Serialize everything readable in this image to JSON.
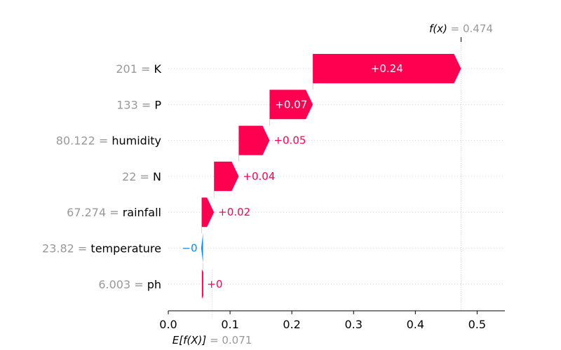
{
  "chart_data": {
    "type": "waterfall",
    "base_value": 0.071,
    "output_value": 0.474,
    "base_label": "E[f(X)]",
    "output_label": "f(x)",
    "base_value_text": "= 0.071",
    "output_value_text": "= 0.474",
    "features": [
      {
        "value": "201",
        "name": "K",
        "contribution": 0.24,
        "label": "+0.24"
      },
      {
        "value": "133",
        "name": "P",
        "contribution": 0.07,
        "label": "+0.07"
      },
      {
        "value": "80.122",
        "name": "humidity",
        "contribution": 0.05,
        "label": "+0.05"
      },
      {
        "value": "22",
        "name": "N",
        "contribution": 0.04,
        "label": "+0.04"
      },
      {
        "value": "67.274",
        "name": "rainfall",
        "contribution": 0.02,
        "label": "+0.02"
      },
      {
        "value": "23.82",
        "name": "temperature",
        "contribution": -0.002,
        "label": "−0"
      },
      {
        "value": "6.003",
        "name": "ph",
        "contribution": 0.001,
        "label": "+0"
      }
    ],
    "xlim": [
      0.0,
      0.545
    ],
    "xticks": [
      0.0,
      0.1,
      0.2,
      0.3,
      0.4,
      0.5
    ],
    "xtick_labels": [
      "0.0",
      "0.1",
      "0.2",
      "0.3",
      "0.4",
      "0.5"
    ],
    "colors": {
      "positive": "#ff0051",
      "negative": "#008bfb",
      "text": "#000000",
      "muted": "#999999",
      "grid": "#cccccc"
    }
  }
}
